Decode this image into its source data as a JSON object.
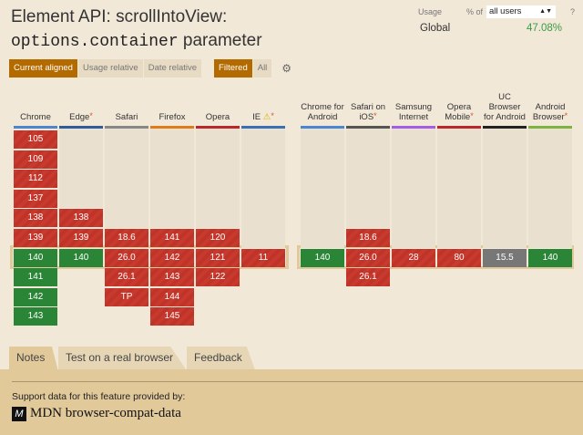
{
  "title": {
    "line1": "Element API: scrollIntoView:",
    "code": "options.container",
    "rest": "parameter"
  },
  "toolbar": {
    "current_aligned": "Current aligned",
    "usage_relative": "Usage relative",
    "date_relative": "Date relative",
    "filtered": "Filtered",
    "all": "All",
    "settings_icon": "gear-icon"
  },
  "usage": {
    "label": "Usage",
    "pct_of": "% of",
    "select_value": "all users",
    "help": "?",
    "region": "Global",
    "value": "47.08%"
  },
  "colors": {
    "supported": "#2a8537",
    "unsupported": "#c93a2e",
    "unknown": "#777777",
    "accent": "#b36b00"
  },
  "browsers": [
    {
      "name": "Chrome",
      "color": "#4a87d0",
      "star": false,
      "start": 0,
      "cells": [
        [
          "105",
          "n"
        ],
        [
          "109",
          "n"
        ],
        [
          "112",
          "n"
        ],
        [
          "137",
          "n"
        ],
        [
          "138",
          "n"
        ],
        [
          "139",
          "n"
        ],
        [
          "140",
          "y"
        ],
        [
          "141",
          "y"
        ],
        [
          "142",
          "y"
        ],
        [
          "143",
          "y"
        ]
      ]
    },
    {
      "name": "Edge",
      "color": "#2f5d9a",
      "star": true,
      "start": 4,
      "cells": [
        [
          "138",
          "n"
        ],
        [
          "139",
          "n"
        ],
        [
          "140",
          "y"
        ]
      ]
    },
    {
      "name": "Safari",
      "color": "#888888",
      "star": false,
      "start": 5,
      "cells": [
        [
          "18.6",
          "n"
        ],
        [
          "26.0",
          "n"
        ],
        [
          "26.1",
          "n"
        ],
        [
          "TP",
          "n"
        ]
      ]
    },
    {
      "name": "Firefox",
      "color": "#e07b1a",
      "star": false,
      "start": 5,
      "cells": [
        [
          "141",
          "n"
        ],
        [
          "142",
          "n"
        ],
        [
          "143",
          "n"
        ],
        [
          "144",
          "n"
        ],
        [
          "145",
          "n"
        ]
      ]
    },
    {
      "name": "Opera",
      "color": "#b9262b",
      "star": false,
      "start": 5,
      "cells": [
        [
          "120",
          "n"
        ],
        [
          "121",
          "n"
        ],
        [
          "122",
          "n"
        ]
      ]
    },
    {
      "name": "IE",
      "color": "#3b6fb5",
      "star": true,
      "warn": true,
      "start": 6,
      "cells": [
        [
          "11",
          "n"
        ]
      ]
    },
    {
      "name": "Chrome for Android",
      "color": "#4a87d0",
      "star": false,
      "start": 6,
      "cells": [
        [
          "140",
          "y"
        ]
      ]
    },
    {
      "name": "Safari on iOS",
      "color": "#555555",
      "star": true,
      "start": 5,
      "cells": [
        [
          "18.6",
          "n"
        ],
        [
          "26.0",
          "n"
        ],
        [
          "26.1",
          "n"
        ]
      ]
    },
    {
      "name": "Samsung Internet",
      "color": "#a45ee5",
      "star": false,
      "start": 6,
      "cells": [
        [
          "28",
          "n"
        ]
      ]
    },
    {
      "name": "Opera Mobile",
      "color": "#b9262b",
      "star": true,
      "start": 6,
      "cells": [
        [
          "80",
          "n"
        ]
      ]
    },
    {
      "name": "UC Browser for Android",
      "color": "#222222",
      "star": false,
      "start": 6,
      "cells": [
        [
          "15.5",
          "u"
        ]
      ]
    },
    {
      "name": "Android Browser",
      "color": "#7cb342",
      "star": true,
      "start": 6,
      "cells": [
        [
          "140",
          "y"
        ]
      ]
    }
  ],
  "tabs": [
    {
      "label": "Notes",
      "active": true
    },
    {
      "label": "Test on a real browser"
    },
    {
      "label": "Feedback"
    }
  ],
  "footer": {
    "support": "Support data for this feature provided by:",
    "mdn": "MDN browser-compat-data",
    "logo": "M"
  }
}
